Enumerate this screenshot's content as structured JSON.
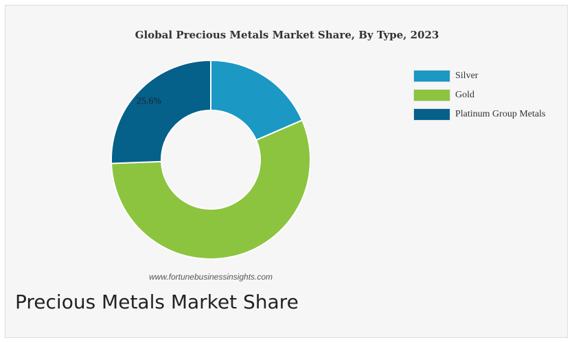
{
  "chart_data": {
    "type": "pie",
    "title": "Global Precious Metals Market Share, By Type, 2023",
    "categories": [
      "Silver",
      "Gold",
      "Platinum Group Metals"
    ],
    "values": [
      18.5,
      55.9,
      25.6
    ],
    "colors": [
      "#1b98c4",
      "#8cc43f",
      "#05608a"
    ],
    "data_labels": [
      "",
      "",
      "25.6%"
    ],
    "donut": true,
    "legend_position": "top-right"
  },
  "watermark": "www.fortunebusinessinsights.com",
  "caption": "Precious Metals Market Share"
}
